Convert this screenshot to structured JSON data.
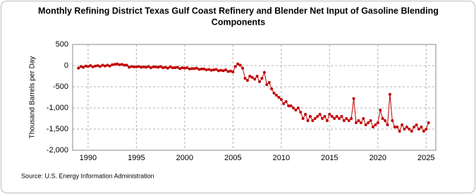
{
  "chart_data": {
    "type": "line",
    "title": "Monthly Refining District Texas Gulf Coast Refinery and Blender Net Input of Gasoline Blending",
    "subtitle": "Components",
    "y_label": "Thousand Barrels per Day",
    "source": "Source: U.S. Energy Information Administration",
    "x": [
      1989,
      1989.25,
      1989.5,
      1989.75,
      1990,
      1990.25,
      1990.5,
      1990.75,
      1991,
      1991.25,
      1991.5,
      1991.75,
      1992,
      1992.25,
      1992.5,
      1992.75,
      1993,
      1993.25,
      1993.5,
      1993.75,
      1994,
      1994.25,
      1994.5,
      1994.75,
      1995,
      1995.25,
      1995.5,
      1995.75,
      1996,
      1996.25,
      1996.5,
      1996.75,
      1997,
      1997.25,
      1997.5,
      1997.75,
      1998,
      1998.25,
      1998.5,
      1998.75,
      1999,
      1999.25,
      1999.5,
      1999.75,
      2000,
      2000.25,
      2000.5,
      2000.75,
      2001,
      2001.25,
      2001.5,
      2001.75,
      2002,
      2002.25,
      2002.5,
      2002.75,
      2003,
      2003.25,
      2003.5,
      2003.75,
      2004,
      2004.25,
      2004.5,
      2004.75,
      2005,
      2005.25,
      2005.5,
      2005.75,
      2006,
      2006.25,
      2006.5,
      2006.75,
      2007,
      2007.25,
      2007.5,
      2007.75,
      2008,
      2008.25,
      2008.5,
      2008.75,
      2009,
      2009.25,
      2009.5,
      2009.75,
      2010,
      2010.25,
      2010.5,
      2010.75,
      2011,
      2011.25,
      2011.5,
      2011.75,
      2012,
      2012.25,
      2012.5,
      2012.75,
      2013,
      2013.25,
      2013.5,
      2013.75,
      2014,
      2014.25,
      2014.5,
      2014.75,
      2015,
      2015.25,
      2015.5,
      2015.75,
      2016,
      2016.25,
      2016.5,
      2016.75,
      2017,
      2017.25,
      2017.5,
      2017.75,
      2018,
      2018.25,
      2018.5,
      2018.75,
      2019,
      2019.25,
      2019.5,
      2019.75,
      2020,
      2020.25,
      2020.5,
      2020.75,
      2021,
      2021.25,
      2021.5,
      2021.75,
      2022,
      2022.25,
      2022.5,
      2022.75,
      2023,
      2023.25,
      2023.5,
      2023.75,
      2024,
      2024.25,
      2024.5,
      2024.75,
      2025,
      2025.25
    ],
    "series": [
      {
        "name": "Net Input",
        "color": "#c00000",
        "values": [
          -60,
          -20,
          -40,
          -10,
          -20,
          0,
          -30,
          -10,
          0,
          -20,
          10,
          -10,
          10,
          -10,
          20,
          30,
          40,
          20,
          30,
          10,
          10,
          -40,
          -20,
          -30,
          -30,
          -20,
          -40,
          -30,
          -40,
          -20,
          -50,
          -30,
          -30,
          -40,
          -20,
          -50,
          -40,
          -60,
          -30,
          -50,
          -50,
          -40,
          -70,
          -50,
          -60,
          -50,
          -80,
          -70,
          -70,
          -60,
          -90,
          -80,
          -80,
          -100,
          -90,
          -110,
          -100,
          -90,
          -120,
          -110,
          -120,
          -100,
          -140,
          -130,
          -150,
          -20,
          40,
          10,
          -60,
          -300,
          -350,
          -250,
          -280,
          -320,
          -250,
          -380,
          -300,
          -160,
          -450,
          -400,
          -550,
          -650,
          -700,
          -750,
          -800,
          -900,
          -850,
          -950,
          -950,
          -1000,
          -1050,
          -1000,
          -1100,
          -1250,
          -1150,
          -1300,
          -1200,
          -1300,
          -1250,
          -1200,
          -1150,
          -1250,
          -1200,
          -1300,
          -1150,
          -1200,
          -1250,
          -1200,
          -1250,
          -1200,
          -1300,
          -1250,
          -1300,
          -1250,
          -780,
          -1350,
          -1300,
          -1350,
          -1250,
          -1400,
          -1350,
          -1300,
          -1450,
          -1400,
          -1350,
          -1050,
          -1250,
          -1300,
          -1400,
          -680,
          -1300,
          -1450,
          -1450,
          -1550,
          -1400,
          -1500,
          -1450,
          -1500,
          -1550,
          -1450,
          -1400,
          -1500,
          -1450,
          -1550,
          -1500,
          -1350
        ]
      }
    ],
    "xlim": [
      1988.4,
      2026
    ],
    "xticks": [
      1990,
      1995,
      2000,
      2005,
      2010,
      2015,
      2020,
      2025
    ],
    "ylim": [
      -2000,
      500
    ],
    "yticks": [
      {
        "value": -2000,
        "label": "-2,000"
      },
      {
        "value": -1500,
        "label": "-1,500"
      },
      {
        "value": -1000,
        "label": "-1,000"
      },
      -500,
      0,
      500
    ],
    "grid": true
  }
}
